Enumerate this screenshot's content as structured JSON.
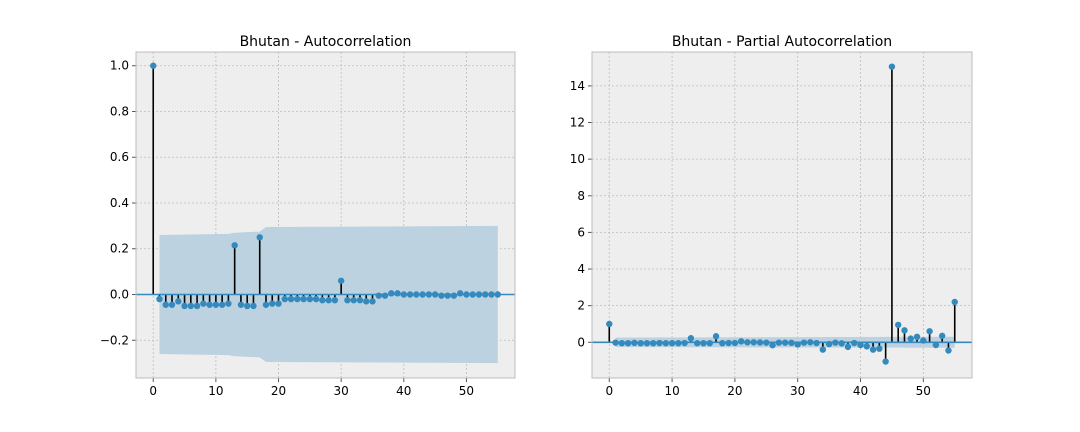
{
  "chart_data": [
    {
      "type": "stem",
      "title": "Bhutan - Autocorrelation",
      "xlabel": "",
      "ylabel": "",
      "xlim": [
        -2.75,
        57.75
      ],
      "ylim": [
        -0.365,
        1.06
      ],
      "xticks": [
        0,
        10,
        20,
        30,
        40,
        50
      ],
      "xtick_labels": [
        "0",
        "10",
        "20",
        "30",
        "40",
        "50"
      ],
      "yticks": [
        -0.2,
        0.0,
        0.2,
        0.4,
        0.6,
        0.8,
        1.0
      ],
      "ytick_labels": [
        "−0.2",
        "0.0",
        "0.2",
        "0.4",
        "0.6",
        "0.8",
        "1.0"
      ],
      "grid": true,
      "zero_line": 0,
      "lags": [
        0,
        1,
        2,
        3,
        4,
        5,
        6,
        7,
        8,
        9,
        10,
        11,
        12,
        13,
        14,
        15,
        16,
        17,
        18,
        19,
        20,
        21,
        22,
        23,
        24,
        25,
        26,
        27,
        28,
        29,
        30,
        31,
        32,
        33,
        34,
        35,
        36,
        37,
        38,
        39,
        40,
        41,
        42,
        43,
        44,
        45,
        46,
        47,
        48,
        49,
        50,
        51,
        52,
        53,
        54,
        55
      ],
      "values": [
        1.0,
        -0.02,
        -0.045,
        -0.045,
        -0.03,
        -0.05,
        -0.05,
        -0.05,
        -0.04,
        -0.045,
        -0.045,
        -0.045,
        -0.04,
        0.215,
        -0.045,
        -0.05,
        -0.05,
        0.25,
        -0.045,
        -0.04,
        -0.04,
        -0.02,
        -0.02,
        -0.02,
        -0.02,
        -0.02,
        -0.02,
        -0.025,
        -0.025,
        -0.025,
        0.06,
        -0.025,
        -0.025,
        -0.025,
        -0.03,
        -0.03,
        -0.005,
        -0.005,
        0.005,
        0.005,
        0.0,
        0.0,
        0.0,
        0.0,
        0.0,
        0.0,
        -0.005,
        -0.005,
        -0.005,
        0.005,
        0.0,
        0.0,
        0.0,
        0.0,
        0.0,
        0.0
      ],
      "confidence_band": {
        "lags": [
          1,
          12,
          13,
          17,
          18,
          55
        ],
        "upper": [
          0.26,
          0.265,
          0.27,
          0.275,
          0.295,
          0.3
        ],
        "lower": [
          -0.26,
          -0.265,
          -0.27,
          -0.275,
          -0.295,
          -0.3
        ]
      },
      "colors": {
        "marker": "#348abd",
        "stem": "#000000",
        "band": "#bcd2e0",
        "zero": "#348abd",
        "background": "#eeeeee",
        "grid": "#bdbdbd"
      }
    },
    {
      "type": "stem",
      "title": "Bhutan - Partial Autocorrelation",
      "xlabel": "",
      "ylabel": "",
      "xlim": [
        -2.75,
        57.75
      ],
      "ylim": [
        -1.95,
        15.85
      ],
      "xticks": [
        0,
        10,
        20,
        30,
        40,
        50
      ],
      "xtick_labels": [
        "0",
        "10",
        "20",
        "30",
        "40",
        "50"
      ],
      "yticks": [
        0,
        2,
        4,
        6,
        8,
        10,
        12,
        14
      ],
      "ytick_labels": [
        "0",
        "2",
        "4",
        "6",
        "8",
        "10",
        "12",
        "14"
      ],
      "grid": true,
      "zero_line": 0,
      "lags": [
        0,
        1,
        2,
        3,
        4,
        5,
        6,
        7,
        8,
        9,
        10,
        11,
        12,
        13,
        14,
        15,
        16,
        17,
        18,
        19,
        20,
        21,
        22,
        23,
        24,
        25,
        26,
        27,
        28,
        29,
        30,
        31,
        32,
        33,
        34,
        35,
        36,
        37,
        38,
        39,
        40,
        41,
        42,
        43,
        44,
        45,
        46,
        47,
        48,
        49,
        50,
        51,
        52,
        53,
        54,
        55
      ],
      "values": [
        1.0,
        -0.02,
        -0.05,
        -0.05,
        -0.03,
        -0.05,
        -0.05,
        -0.05,
        -0.04,
        -0.05,
        -0.05,
        -0.05,
        -0.04,
        0.22,
        -0.05,
        -0.05,
        -0.05,
        0.33,
        -0.05,
        -0.04,
        -0.04,
        0.05,
        0.0,
        0.0,
        -0.01,
        -0.02,
        -0.16,
        -0.02,
        -0.02,
        -0.03,
        -0.12,
        -0.02,
        0.0,
        -0.04,
        -0.4,
        -0.1,
        -0.02,
        -0.06,
        -0.25,
        -0.04,
        -0.15,
        -0.22,
        -0.4,
        -0.35,
        -1.05,
        15.05,
        0.95,
        0.65,
        0.2,
        0.3,
        0.1,
        0.6,
        -0.15,
        0.35,
        -0.45,
        2.2
      ],
      "confidence_band": {
        "lags": [
          1,
          55
        ],
        "upper": [
          0.26,
          0.3
        ],
        "lower": [
          -0.26,
          -0.3
        ]
      },
      "colors": {
        "marker": "#348abd",
        "stem": "#000000",
        "band": "#bcd2e0",
        "zero": "#348abd",
        "background": "#eeeeee",
        "grid": "#bdbdbd"
      }
    }
  ]
}
